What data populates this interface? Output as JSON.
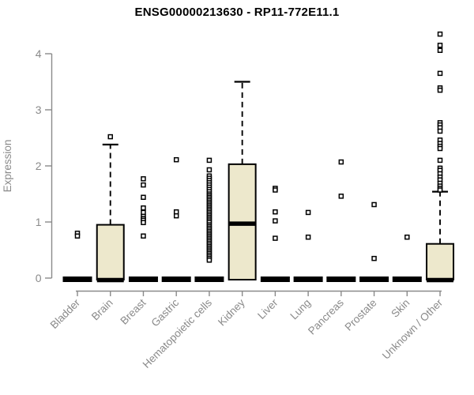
{
  "page": {
    "background": "#ffffff"
  },
  "chart_data": {
    "type": "boxplot",
    "title": "ENSG00000213630 - RP11-772E11.1",
    "ylabel": "Expression",
    "xlabel": "",
    "ylim": [
      0,
      4.4
    ],
    "yticks": [
      0,
      1,
      2,
      3,
      4
    ],
    "grid": false,
    "legend": false,
    "categories": [
      "Bladder",
      "Brain",
      "Breast",
      "Gastric",
      "Hematopoietic cells",
      "Kidney",
      "Liver",
      "Lung",
      "Pancreas",
      "Prostate",
      "Skin",
      "Unknown / Other"
    ],
    "boxes": [
      {
        "category": "Bladder",
        "q1": 0,
        "median": 0,
        "q3": 0,
        "whisker_low": 0,
        "whisker_high": 0,
        "outliers": [
          0.8,
          0.75
        ]
      },
      {
        "category": "Brain",
        "q1": 0,
        "median": 0,
        "q3": 0.95,
        "whisker_low": 0,
        "whisker_high": 2.38,
        "outliers": [
          2.52
        ]
      },
      {
        "category": "Breast",
        "q1": 0,
        "median": 0,
        "q3": 0,
        "whisker_low": 0,
        "whisker_high": 0,
        "outliers": [
          1.77,
          1.66,
          1.44,
          1.25,
          1.17,
          1.1,
          1.06,
          1.03,
          0.99,
          0.75
        ]
      },
      {
        "category": "Gastric",
        "q1": 0,
        "median": 0,
        "q3": 0,
        "whisker_low": 0,
        "whisker_high": 0,
        "outliers": [
          2.11,
          1.18,
          1.11
        ]
      },
      {
        "category": "Hematopoietic cells",
        "q1": 0,
        "median": 0,
        "q3": 0,
        "whisker_low": 0,
        "whisker_high": 0,
        "outliers": [
          2.1,
          1.93,
          1.82,
          1.78,
          1.74,
          1.7,
          1.66,
          1.62,
          1.58,
          1.54,
          1.5,
          1.47,
          1.44,
          1.41,
          1.38,
          1.35,
          1.32,
          1.29,
          1.26,
          1.23,
          1.2,
          1.17,
          1.14,
          1.11,
          1.08,
          1.05,
          1.02,
          0.99,
          0.95,
          0.92,
          0.89,
          0.86,
          0.83,
          0.8,
          0.77,
          0.74,
          0.71,
          0.68,
          0.65,
          0.62,
          0.59,
          0.56,
          0.53,
          0.5,
          0.47,
          0.44,
          0.41,
          0.38,
          0.35,
          0.32
        ]
      },
      {
        "category": "Kidney",
        "q1": 0,
        "median": 0.97,
        "q3": 2.03,
        "whisker_low": 0,
        "whisker_high": 3.5,
        "outliers": []
      },
      {
        "category": "Liver",
        "q1": 0,
        "median": 0,
        "q3": 0,
        "whisker_low": 0,
        "whisker_high": 0,
        "outliers": [
          1.6,
          1.57,
          1.18,
          1.02,
          0.71
        ]
      },
      {
        "category": "Lung",
        "q1": 0,
        "median": 0,
        "q3": 0,
        "whisker_low": 0,
        "whisker_high": 0,
        "outliers": [
          1.17,
          0.73
        ]
      },
      {
        "category": "Pancreas",
        "q1": 0,
        "median": 0,
        "q3": 0,
        "whisker_low": 0,
        "whisker_high": 0,
        "outliers": [
          2.07,
          1.46
        ]
      },
      {
        "category": "Prostate",
        "q1": 0,
        "median": 0,
        "q3": 0,
        "whisker_low": 0,
        "whisker_high": 0,
        "outliers": [
          1.31,
          0.35
        ]
      },
      {
        "category": "Skin",
        "q1": 0,
        "median": 0,
        "q3": 0,
        "whisker_low": 0,
        "whisker_high": 0,
        "outliers": [
          0.73
        ]
      },
      {
        "category": "Unknown / Other",
        "q1": 0,
        "median": 0,
        "q3": 0.61,
        "whisker_low": 0,
        "whisker_high": 1.54,
        "outliers": [
          4.35,
          4.15,
          4.06,
          3.65,
          3.39,
          3.35,
          2.77,
          2.73,
          2.68,
          2.62,
          2.46,
          2.4,
          2.35,
          2.31,
          2.1,
          1.96,
          1.92,
          1.86,
          1.8,
          1.75,
          1.69,
          1.64,
          1.6,
          1.57
        ]
      }
    ],
    "colors": {
      "box_fill": "#EDE8CC",
      "box_stroke": "#000000",
      "median": "#000000",
      "whisker": "#000000",
      "outlier_stroke": "#000000",
      "outlier_fill": "#ffffff",
      "axis": "#8a8a8a",
      "tick_label": "#8a8a8a",
      "title": "#000000"
    }
  }
}
